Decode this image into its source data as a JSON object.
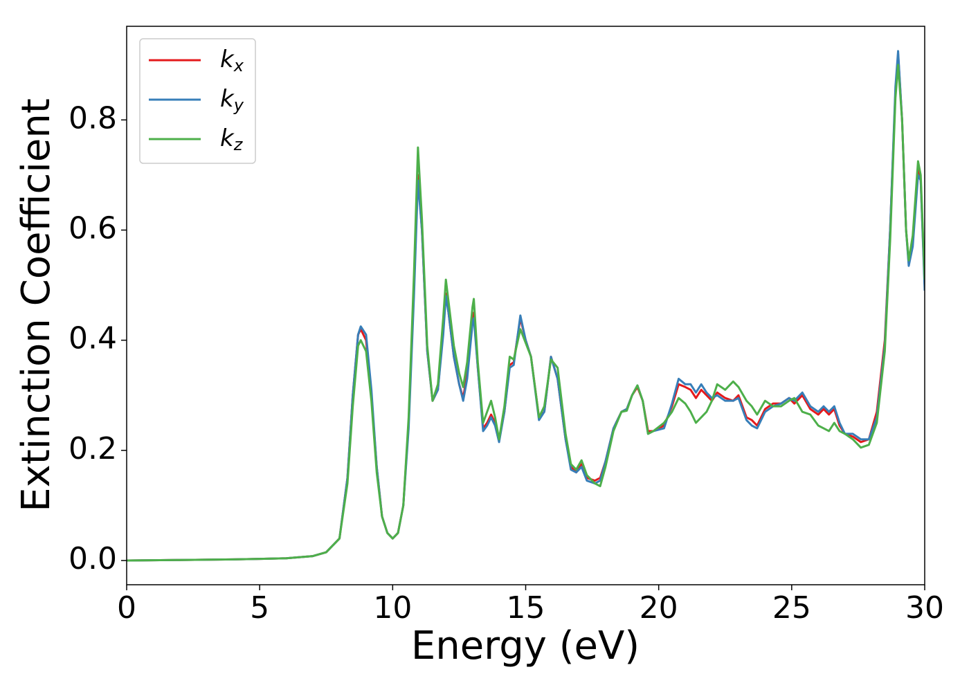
{
  "chart_data": {
    "type": "line",
    "x_label": "Energy (eV)",
    "y_label": "Extinction Coefficient",
    "x": [
      0,
      2,
      4,
      6,
      7,
      7.5,
      8,
      8.3,
      8.5,
      8.7,
      8.8,
      9.0,
      9.2,
      9.4,
      9.6,
      9.8,
      10.0,
      10.2,
      10.4,
      10.6,
      10.8,
      10.95,
      11.1,
      11.3,
      11.5,
      11.7,
      11.9,
      12.0,
      12.1,
      12.3,
      12.5,
      12.65,
      12.8,
      13.0,
      13.05,
      13.2,
      13.4,
      13.55,
      13.7,
      13.85,
      14.0,
      14.2,
      14.4,
      14.55,
      14.8,
      15.0,
      15.2,
      15.5,
      15.7,
      15.95,
      16.2,
      16.5,
      16.7,
      16.9,
      17.1,
      17.3,
      17.6,
      17.8,
      18.0,
      18.3,
      18.6,
      18.8,
      19.0,
      19.2,
      19.4,
      19.6,
      19.8,
      20.2,
      20.5,
      20.75,
      21.0,
      21.2,
      21.4,
      21.6,
      21.8,
      22.0,
      22.2,
      22.5,
      22.8,
      23.0,
      23.3,
      23.5,
      23.7,
      24.0,
      24.3,
      24.6,
      24.9,
      25.1,
      25.4,
      25.7,
      26.0,
      26.2,
      26.4,
      26.6,
      26.8,
      27.0,
      27.3,
      27.6,
      27.9,
      28.2,
      28.5,
      28.7,
      28.9,
      29.0,
      29.15,
      29.3,
      29.4,
      29.55,
      29.75,
      29.85,
      30.0
    ],
    "series": [
      {
        "name": "kx",
        "color": "#e41a1c",
        "values": [
          0,
          0.001,
          0.002,
          0.004,
          0.008,
          0.015,
          0.04,
          0.15,
          0.3,
          0.41,
          0.42,
          0.4,
          0.3,
          0.17,
          0.08,
          0.05,
          0.04,
          0.05,
          0.1,
          0.25,
          0.5,
          0.7,
          0.6,
          0.38,
          0.29,
          0.31,
          0.42,
          0.485,
          0.45,
          0.37,
          0.32,
          0.295,
          0.34,
          0.44,
          0.45,
          0.35,
          0.24,
          0.25,
          0.265,
          0.25,
          0.22,
          0.27,
          0.355,
          0.36,
          0.44,
          0.4,
          0.37,
          0.26,
          0.27,
          0.37,
          0.33,
          0.22,
          0.17,
          0.16,
          0.175,
          0.15,
          0.145,
          0.15,
          0.18,
          0.24,
          0.27,
          0.275,
          0.3,
          0.315,
          0.29,
          0.235,
          0.235,
          0.245,
          0.28,
          0.32,
          0.315,
          0.31,
          0.295,
          0.31,
          0.3,
          0.29,
          0.305,
          0.295,
          0.29,
          0.3,
          0.26,
          0.255,
          0.245,
          0.275,
          0.285,
          0.285,
          0.295,
          0.285,
          0.3,
          0.275,
          0.265,
          0.275,
          0.265,
          0.275,
          0.245,
          0.23,
          0.225,
          0.215,
          0.22,
          0.27,
          0.4,
          0.6,
          0.85,
          0.92,
          0.8,
          0.6,
          0.54,
          0.58,
          0.71,
          0.69,
          0.5
        ]
      },
      {
        "name": "ky",
        "color": "#377eb8",
        "values": [
          0,
          0.001,
          0.002,
          0.004,
          0.008,
          0.015,
          0.04,
          0.15,
          0.3,
          0.41,
          0.425,
          0.41,
          0.31,
          0.17,
          0.08,
          0.05,
          0.04,
          0.05,
          0.1,
          0.24,
          0.48,
          0.69,
          0.6,
          0.38,
          0.29,
          0.31,
          0.41,
          0.48,
          0.45,
          0.37,
          0.32,
          0.29,
          0.33,
          0.43,
          0.44,
          0.35,
          0.235,
          0.245,
          0.26,
          0.245,
          0.215,
          0.27,
          0.35,
          0.355,
          0.445,
          0.4,
          0.37,
          0.255,
          0.27,
          0.37,
          0.33,
          0.22,
          0.165,
          0.16,
          0.17,
          0.145,
          0.14,
          0.145,
          0.18,
          0.24,
          0.27,
          0.275,
          0.3,
          0.318,
          0.29,
          0.23,
          0.235,
          0.24,
          0.285,
          0.33,
          0.32,
          0.32,
          0.305,
          0.32,
          0.305,
          0.295,
          0.3,
          0.29,
          0.29,
          0.295,
          0.255,
          0.245,
          0.24,
          0.27,
          0.28,
          0.285,
          0.295,
          0.29,
          0.305,
          0.28,
          0.27,
          0.28,
          0.27,
          0.28,
          0.25,
          0.23,
          0.23,
          0.22,
          0.22,
          0.26,
          0.39,
          0.6,
          0.86,
          0.925,
          0.8,
          0.6,
          0.535,
          0.57,
          0.7,
          0.69,
          0.49
        ]
      },
      {
        "name": "kz",
        "color": "#4daf4a",
        "values": [
          0,
          0.001,
          0.002,
          0.004,
          0.008,
          0.015,
          0.04,
          0.14,
          0.28,
          0.39,
          0.4,
          0.38,
          0.29,
          0.16,
          0.08,
          0.05,
          0.04,
          0.05,
          0.1,
          0.26,
          0.52,
          0.75,
          0.62,
          0.39,
          0.29,
          0.32,
          0.44,
          0.51,
          0.47,
          0.39,
          0.34,
          0.315,
          0.36,
          0.46,
          0.475,
          0.36,
          0.25,
          0.27,
          0.29,
          0.26,
          0.22,
          0.28,
          0.37,
          0.365,
          0.42,
          0.395,
          0.37,
          0.26,
          0.28,
          0.365,
          0.35,
          0.23,
          0.175,
          0.165,
          0.182,
          0.155,
          0.14,
          0.135,
          0.17,
          0.235,
          0.27,
          0.272,
          0.3,
          0.318,
          0.29,
          0.23,
          0.235,
          0.25,
          0.27,
          0.295,
          0.285,
          0.27,
          0.25,
          0.26,
          0.27,
          0.29,
          0.32,
          0.31,
          0.325,
          0.315,
          0.29,
          0.28,
          0.265,
          0.29,
          0.28,
          0.28,
          0.29,
          0.295,
          0.27,
          0.265,
          0.245,
          0.24,
          0.235,
          0.25,
          0.235,
          0.23,
          0.22,
          0.205,
          0.21,
          0.25,
          0.38,
          0.58,
          0.84,
          0.9,
          0.8,
          0.6,
          0.545,
          0.59,
          0.725,
          0.7,
          0.51
        ]
      }
    ],
    "xlim": [
      0,
      30
    ],
    "xticks": [
      0,
      5,
      10,
      15,
      20,
      25,
      30
    ],
    "ylim": [
      -0.044,
      0.97
    ],
    "yticks": [
      {
        "value": 0,
        "label": "0.0"
      },
      0.2,
      0.4,
      0.6,
      0.8
    ],
    "grid": false,
    "legend": "upper left"
  }
}
